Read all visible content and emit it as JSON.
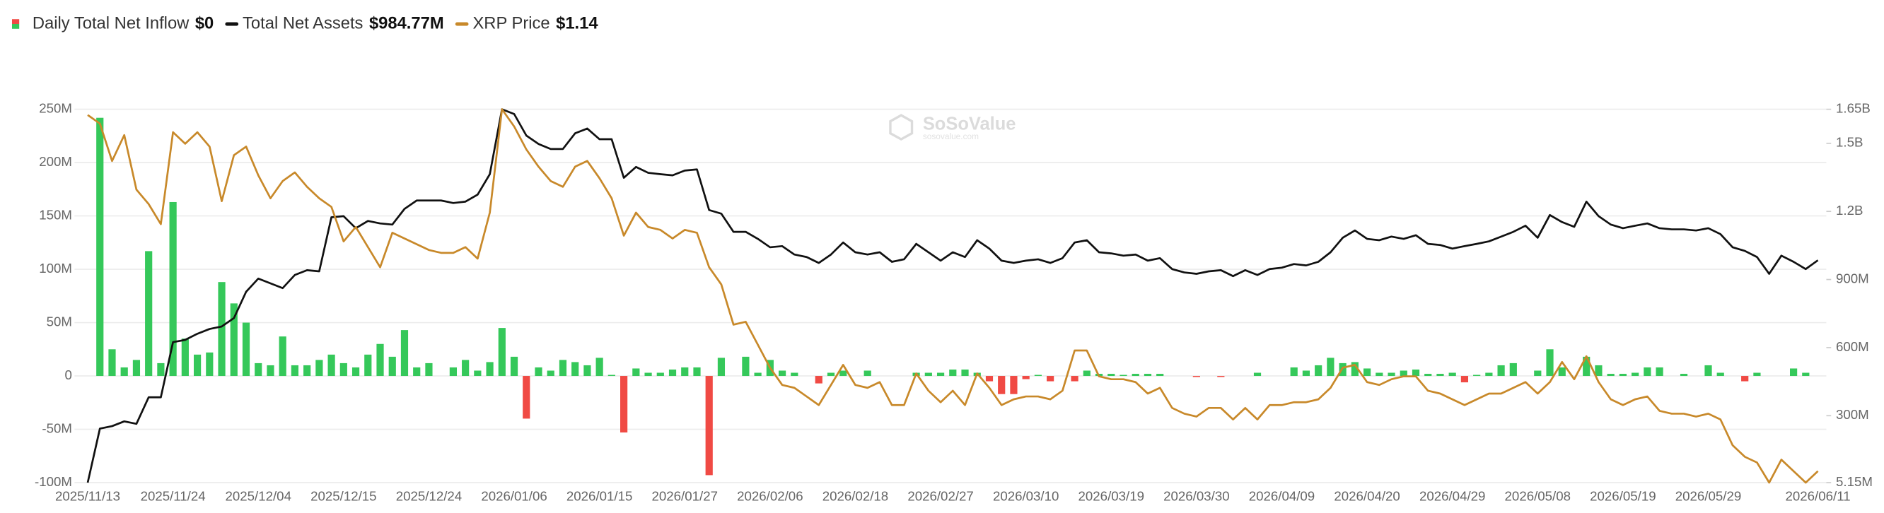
{
  "chart_data": {
    "type": "bar",
    "watermark": {
      "title": "SoSoValue",
      "subtitle": "sosovalue.com"
    },
    "categories": [
      "2025/11/13",
      null,
      null,
      null,
      null,
      null,
      null,
      "2025/11/24",
      null,
      null,
      null,
      null,
      null,
      null,
      "2025/12/04",
      null,
      null,
      null,
      null,
      null,
      null,
      "2025/12/15",
      null,
      null,
      null,
      null,
      null,
      null,
      "2025/12/24",
      null,
      null,
      null,
      null,
      null,
      null,
      "2026/01/06",
      null,
      null,
      null,
      null,
      null,
      null,
      "2026/01/15",
      null,
      null,
      null,
      null,
      null,
      null,
      "2026/01/27",
      null,
      null,
      null,
      null,
      null,
      null,
      "2026/02/06",
      null,
      null,
      null,
      null,
      null,
      null,
      "2026/02/18",
      null,
      null,
      null,
      null,
      null,
      null,
      "2026/02/27",
      null,
      null,
      null,
      null,
      null,
      null,
      "2026/03/10",
      null,
      null,
      null,
      null,
      null,
      null,
      "2026/03/19",
      null,
      null,
      null,
      null,
      null,
      null,
      "2026/03/30",
      null,
      null,
      null,
      null,
      null,
      null,
      "2026/04/09",
      null,
      null,
      null,
      null,
      null,
      null,
      "2026/04/20",
      null,
      null,
      null,
      null,
      null,
      null,
      "2026/04/29",
      null,
      null,
      null,
      null,
      null,
      null,
      "2026/05/08",
      null,
      null,
      null,
      null,
      null,
      null,
      "2026/05/19",
      null,
      null,
      null,
      null,
      null,
      null,
      "2026/05/29",
      null,
      null,
      null,
      null,
      null,
      null,
      null,
      null,
      "2026/06/11"
    ],
    "ylim": [
      -100,
      250
    ],
    "yticks": [
      {
        "value": -100,
        "label": "-100M"
      },
      {
        "value": -50,
        "label": "-50M"
      },
      0,
      {
        "value": 50,
        "label": "50M"
      },
      {
        "value": 100,
        "label": "100M"
      },
      {
        "value": 150,
        "label": "150M"
      },
      {
        "value": 200,
        "label": "200M"
      },
      {
        "value": 250,
        "label": "250M"
      }
    ],
    "y2lim": [
      5.15,
      1650
    ],
    "y2ticks": [
      {
        "value": 5.15,
        "label": "5.15M"
      },
      {
        "value": 300,
        "label": "300M"
      },
      {
        "value": 600,
        "label": "600M"
      },
      {
        "value": 900,
        "label": "900M"
      },
      {
        "value": 1200,
        "label": "1.2B"
      },
      {
        "value": 1500,
        "label": "1.5B"
      },
      {
        "value": 1650,
        "label": "1.65B"
      }
    ],
    "y3lim": [
      1.1,
      2.4
    ],
    "grid": true,
    "series": [
      {
        "name": "Daily Total Net Inflow",
        "latest": "$0",
        "type": "bar",
        "axis": "y",
        "color": "#35c85a",
        "negative_color": "#f04a44",
        "values": [
          0,
          242,
          25,
          8,
          15,
          117,
          12,
          163,
          35,
          20,
          22,
          88,
          68,
          50,
          12,
          10,
          37,
          10,
          10,
          15,
          20,
          12,
          8,
          20,
          30,
          18,
          43,
          8,
          12,
          0,
          8,
          15,
          5,
          13,
          45,
          18,
          -40,
          8,
          5,
          15,
          13,
          10,
          17,
          1,
          -53,
          7,
          3,
          3,
          6,
          8,
          8,
          -93,
          17,
          0,
          18,
          3,
          15,
          5,
          3,
          0,
          -7,
          3,
          5,
          0,
          5,
          0,
          0,
          0,
          3,
          3,
          3,
          6,
          6,
          3,
          -5,
          -17,
          -17,
          -3,
          1,
          -5,
          0,
          -5,
          5,
          2,
          2,
          1,
          2,
          2,
          2,
          0,
          0,
          -1,
          0,
          -1,
          0,
          0,
          3,
          0,
          0,
          8,
          5,
          10,
          17,
          12,
          13,
          7,
          3,
          3,
          5,
          6,
          2,
          2,
          3,
          -6,
          1,
          3,
          10,
          12,
          0,
          5,
          25,
          8,
          0,
          18,
          10,
          2,
          2,
          3,
          8,
          8,
          0,
          2,
          0,
          10,
          3,
          0,
          -5,
          3,
          0,
          0,
          7,
          3,
          0
        ]
      },
      {
        "name": "Total Net Assets",
        "latest": "$984.77M",
        "type": "line",
        "axis": "y2",
        "color": "#111111",
        "values": [
          5.15,
          243,
          254,
          275,
          264,
          381,
          381,
          624,
          634,
          661,
          682,
          693,
          730,
          846,
          904,
          883,
          862,
          920,
          941,
          936,
          1174,
          1179,
          1126,
          1158,
          1147,
          1142,
          1211,
          1248,
          1248,
          1248,
          1237,
          1243,
          1274,
          1364,
          1650,
          1629,
          1534,
          1497,
          1475,
          1475,
          1544,
          1565,
          1518,
          1518,
          1348,
          1396,
          1370,
          1364,
          1359,
          1380,
          1385,
          1206,
          1190,
          1110,
          1110,
          1079,
          1042,
          1047,
          1010,
          999,
          973,
          1010,
          1063,
          1020,
          1010,
          1020,
          978,
          989,
          1057,
          1020,
          983,
          1020,
          999,
          1073,
          1036,
          983,
          973,
          983,
          989,
          973,
          994,
          1063,
          1073,
          1020,
          1015,
          1005,
          1010,
          983,
          994,
          946,
          931,
          925,
          936,
          941,
          915,
          941,
          920,
          946,
          952,
          968,
          962,
          978,
          1020,
          1084,
          1116,
          1079,
          1073,
          1089,
          1079,
          1095,
          1057,
          1052,
          1036,
          1047,
          1057,
          1068,
          1089,
          1110,
          1137,
          1084,
          1184,
          1153,
          1132,
          1243,
          1179,
          1142,
          1126,
          1137,
          1147,
          1126,
          1121,
          1121,
          1116,
          1126,
          1100,
          1042,
          1026,
          999,
          925,
          1005,
          978,
          946,
          984.77
        ]
      },
      {
        "name": "XRP Price",
        "latest": "$1.14",
        "type": "line",
        "axis": "y3",
        "color": "#c8892a",
        "values": [
          2.38,
          2.35,
          2.22,
          2.31,
          2.12,
          2.07,
          2.0,
          2.32,
          2.28,
          2.32,
          2.27,
          2.08,
          2.24,
          2.27,
          2.17,
          2.09,
          2.15,
          2.18,
          2.13,
          2.09,
          2.06,
          1.94,
          1.99,
          1.92,
          1.85,
          1.97,
          1.95,
          1.93,
          1.91,
          1.9,
          1.9,
          1.92,
          1.88,
          2.04,
          2.4,
          2.34,
          2.26,
          2.2,
          2.15,
          2.13,
          2.2,
          2.22,
          2.16,
          2.09,
          1.96,
          2.04,
          1.99,
          1.98,
          1.95,
          1.98,
          1.97,
          1.85,
          1.79,
          1.65,
          1.66,
          1.58,
          1.5,
          1.44,
          1.43,
          1.4,
          1.37,
          1.44,
          1.51,
          1.44,
          1.43,
          1.45,
          1.37,
          1.37,
          1.48,
          1.42,
          1.38,
          1.42,
          1.37,
          1.48,
          1.43,
          1.37,
          1.39,
          1.4,
          1.4,
          1.39,
          1.42,
          1.56,
          1.56,
          1.47,
          1.46,
          1.46,
          1.45,
          1.41,
          1.43,
          1.36,
          1.34,
          1.33,
          1.36,
          1.36,
          1.32,
          1.36,
          1.32,
          1.37,
          1.37,
          1.38,
          1.38,
          1.39,
          1.43,
          1.5,
          1.51,
          1.45,
          1.44,
          1.46,
          1.47,
          1.47,
          1.42,
          1.41,
          1.39,
          1.37,
          1.39,
          1.41,
          1.41,
          1.43,
          1.45,
          1.41,
          1.45,
          1.52,
          1.46,
          1.54,
          1.45,
          1.39,
          1.37,
          1.39,
          1.4,
          1.35,
          1.34,
          1.34,
          1.33,
          1.34,
          1.32,
          1.23,
          1.19,
          1.17,
          1.1,
          1.18,
          1.14,
          1.1,
          1.14
        ]
      }
    ]
  }
}
